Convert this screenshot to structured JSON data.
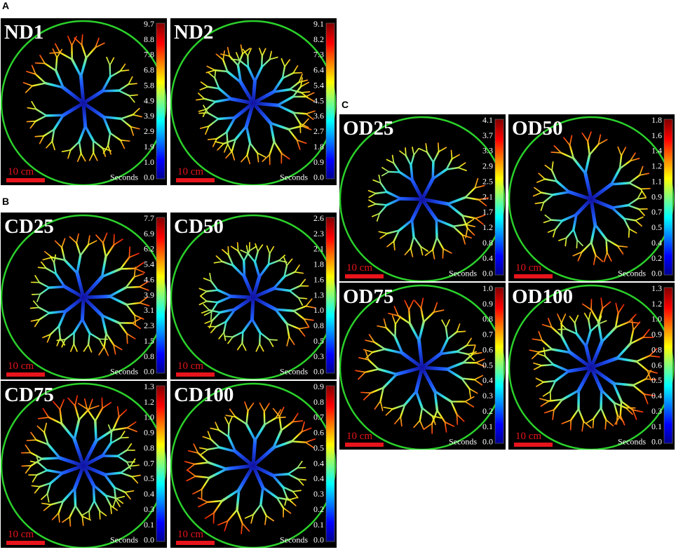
{
  "sections": [
    {
      "label": "A",
      "panels": [
        {
          "title": "ND1",
          "colorbar_ticks": [
            "9.7",
            "8.8",
            "7.8",
            "6.8",
            "5.8",
            "4.9",
            "3.9",
            "2.9",
            "1.9",
            "1.0",
            "0.0"
          ],
          "scale_label": "10 cm",
          "unit_label": "Seconds"
        },
        {
          "title": "ND2",
          "colorbar_ticks": [
            "9.1",
            "8.2",
            "7.3",
            "6.4",
            "5.4",
            "4.5",
            "3.6",
            "2.7",
            "1.8",
            "0.9",
            "0.0"
          ],
          "scale_label": "10 cm",
          "unit_label": "Seconds"
        }
      ]
    },
    {
      "label": "B",
      "panels": [
        {
          "title": "CD25",
          "colorbar_ticks": [
            "7.7",
            "6.9",
            "6.2",
            "5.4",
            "4.6",
            "3.9",
            "3.1",
            "2.3",
            "1.5",
            "0.8",
            "0.0"
          ],
          "scale_label": "10 cm",
          "unit_label": "Seconds"
        },
        {
          "title": "CD50",
          "colorbar_ticks": [
            "2.6",
            "2.3",
            "2.1",
            "1.8",
            "1.6",
            "1.3",
            "1.0",
            "0.8",
            "0.5",
            "0.3",
            "0.0"
          ],
          "scale_label": "10 cm",
          "unit_label": "Seconds"
        },
        {
          "title": "CD75",
          "colorbar_ticks": [
            "1.3",
            "1.2",
            "1.0",
            "0.9",
            "0.8",
            "0.7",
            "0.5",
            "0.4",
            "0.3",
            "0.1",
            "0.0"
          ],
          "scale_label": "10 cm",
          "unit_label": "Seconds"
        },
        {
          "title": "CD100",
          "colorbar_ticks": [
            "0.9",
            "0.8",
            "0.7",
            "0.6",
            "0.5",
            "0.4",
            "0.4",
            "0.3",
            "0.2",
            "0.1",
            "0.0"
          ],
          "scale_label": "10 cm",
          "unit_label": "Seconds"
        }
      ]
    },
    {
      "label": "C",
      "panels": [
        {
          "title": "OD25",
          "colorbar_ticks": [
            "4.1",
            "3.7",
            "3.3",
            "2.9",
            "2.5",
            "2.1",
            "1.7",
            "1.2",
            "0.8",
            "0.4",
            "0.0"
          ],
          "scale_label": "10 cm",
          "unit_label": "Seconds"
        },
        {
          "title": "OD50",
          "colorbar_ticks": [
            "1.8",
            "1.6",
            "1.4",
            "1.2",
            "1.1",
            "0.9",
            "0.7",
            "0.5",
            "0.4",
            "0.2",
            "0.0"
          ],
          "scale_label": "10 cm",
          "unit_label": "Seconds"
        },
        {
          "title": "OD75",
          "colorbar_ticks": [
            "1.0",
            "0.9",
            "0.8",
            "0.7",
            "0.6",
            "0.5",
            "0.4",
            "0.3",
            "0.2",
            "0.1",
            "0.0"
          ],
          "scale_label": "10 cm",
          "unit_label": "Seconds"
        },
        {
          "title": "OD100",
          "colorbar_ticks": [
            "1.3",
            "1.2",
            "1.0",
            "0.9",
            "0.8",
            "0.6",
            "0.5",
            "0.4",
            "0.3",
            "0.1",
            "0.0"
          ],
          "scale_label": "10 cm",
          "unit_label": "Seconds"
        }
      ]
    }
  ]
}
